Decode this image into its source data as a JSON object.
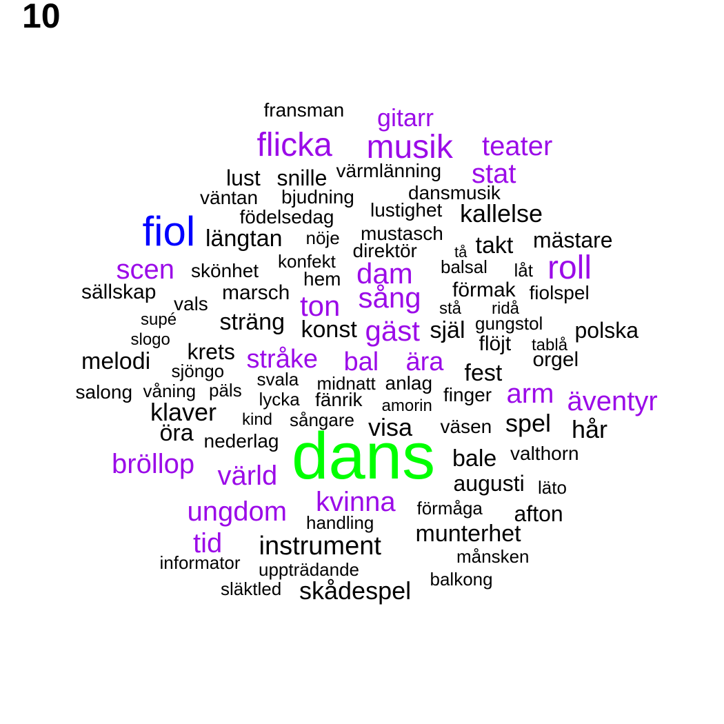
{
  "panel_number": "10",
  "colors": {
    "tier1": "#00ff00",
    "tier2": "#0000ff",
    "tier3": "#9b0be8",
    "tier4": "#000000"
  },
  "words": [
    {
      "text": "dans",
      "tier": "tier1"
    },
    {
      "text": "fiol",
      "tier": "tier2"
    },
    {
      "text": "musik",
      "tier": "tier3"
    },
    {
      "text": "flicka",
      "tier": "tier3"
    },
    {
      "text": "gitarr",
      "tier": "tier3"
    },
    {
      "text": "teater",
      "tier": "tier3"
    },
    {
      "text": "stat",
      "tier": "tier3"
    },
    {
      "text": "roll",
      "tier": "tier3"
    },
    {
      "text": "scen",
      "tier": "tier3"
    },
    {
      "text": "dam",
      "tier": "tier3"
    },
    {
      "text": "sång",
      "tier": "tier3"
    },
    {
      "text": "ton",
      "tier": "tier3"
    },
    {
      "text": "gäst",
      "tier": "tier3"
    },
    {
      "text": "stråke",
      "tier": "tier3"
    },
    {
      "text": "bal",
      "tier": "tier3"
    },
    {
      "text": "ära",
      "tier": "tier3"
    },
    {
      "text": "arm",
      "tier": "tier3"
    },
    {
      "text": "äventyr",
      "tier": "tier3"
    },
    {
      "text": "bröllop",
      "tier": "tier3"
    },
    {
      "text": "värld",
      "tier": "tier3"
    },
    {
      "text": "kvinna",
      "tier": "tier3"
    },
    {
      "text": "ungdom",
      "tier": "tier3"
    },
    {
      "text": "tid",
      "tier": "tier3"
    },
    {
      "text": "fransman",
      "tier": "tier4"
    },
    {
      "text": "lust",
      "tier": "tier4"
    },
    {
      "text": "snille",
      "tier": "tier4"
    },
    {
      "text": "värmlänning",
      "tier": "tier4"
    },
    {
      "text": "väntan",
      "tier": "tier4"
    },
    {
      "text": "bjudning",
      "tier": "tier4"
    },
    {
      "text": "dansmusik",
      "tier": "tier4"
    },
    {
      "text": "lustighet",
      "tier": "tier4"
    },
    {
      "text": "födelsedag",
      "tier": "tier4"
    },
    {
      "text": "kallelse",
      "tier": "tier4"
    },
    {
      "text": "längtan",
      "tier": "tier4"
    },
    {
      "text": "mustasch",
      "tier": "tier4"
    },
    {
      "text": "nöje",
      "tier": "tier4"
    },
    {
      "text": "direktör",
      "tier": "tier4"
    },
    {
      "text": "tå",
      "tier": "tier4"
    },
    {
      "text": "takt",
      "tier": "tier4"
    },
    {
      "text": "mästare",
      "tier": "tier4"
    },
    {
      "text": "konfekt",
      "tier": "tier4"
    },
    {
      "text": "skönhet",
      "tier": "tier4"
    },
    {
      "text": "hem",
      "tier": "tier4"
    },
    {
      "text": "balsal",
      "tier": "tier4"
    },
    {
      "text": "låt",
      "tier": "tier4"
    },
    {
      "text": "sällskap",
      "tier": "tier4"
    },
    {
      "text": "marsch",
      "tier": "tier4"
    },
    {
      "text": "förmak",
      "tier": "tier4"
    },
    {
      "text": "fiolspel",
      "tier": "tier4"
    },
    {
      "text": "vals",
      "tier": "tier4"
    },
    {
      "text": "stå",
      "tier": "tier4"
    },
    {
      "text": "ridå",
      "tier": "tier4"
    },
    {
      "text": "supé",
      "tier": "tier4"
    },
    {
      "text": "sträng",
      "tier": "tier4"
    },
    {
      "text": "gungstol",
      "tier": "tier4"
    },
    {
      "text": "slogo",
      "tier": "tier4"
    },
    {
      "text": "konst",
      "tier": "tier4"
    },
    {
      "text": "själ",
      "tier": "tier4"
    },
    {
      "text": "polska",
      "tier": "tier4"
    },
    {
      "text": "flöjt",
      "tier": "tier4"
    },
    {
      "text": "tablå",
      "tier": "tier4"
    },
    {
      "text": "krets",
      "tier": "tier4"
    },
    {
      "text": "melodi",
      "tier": "tier4"
    },
    {
      "text": "orgel",
      "tier": "tier4"
    },
    {
      "text": "sjöngo",
      "tier": "tier4"
    },
    {
      "text": "fest",
      "tier": "tier4"
    },
    {
      "text": "svala",
      "tier": "tier4"
    },
    {
      "text": "midnatt",
      "tier": "tier4"
    },
    {
      "text": "anlag",
      "tier": "tier4"
    },
    {
      "text": "salong",
      "tier": "tier4"
    },
    {
      "text": "våning",
      "tier": "tier4"
    },
    {
      "text": "päls",
      "tier": "tier4"
    },
    {
      "text": "lycka",
      "tier": "tier4"
    },
    {
      "text": "fänrik",
      "tier": "tier4"
    },
    {
      "text": "finger",
      "tier": "tier4"
    },
    {
      "text": "amorin",
      "tier": "tier4"
    },
    {
      "text": "klaver",
      "tier": "tier4"
    },
    {
      "text": "kind",
      "tier": "tier4"
    },
    {
      "text": "sångare",
      "tier": "tier4"
    },
    {
      "text": "spel",
      "tier": "tier4"
    },
    {
      "text": "visa",
      "tier": "tier4"
    },
    {
      "text": "väsen",
      "tier": "tier4"
    },
    {
      "text": "hår",
      "tier": "tier4"
    },
    {
      "text": "öra",
      "tier": "tier4"
    },
    {
      "text": "nederlag",
      "tier": "tier4"
    },
    {
      "text": "bale",
      "tier": "tier4"
    },
    {
      "text": "valthorn",
      "tier": "tier4"
    },
    {
      "text": "augusti",
      "tier": "tier4"
    },
    {
      "text": "läto",
      "tier": "tier4"
    },
    {
      "text": "förmåga",
      "tier": "tier4"
    },
    {
      "text": "afton",
      "tier": "tier4"
    },
    {
      "text": "handling",
      "tier": "tier4"
    },
    {
      "text": "munterhet",
      "tier": "tier4"
    },
    {
      "text": "instrument",
      "tier": "tier4"
    },
    {
      "text": "månsken",
      "tier": "tier4"
    },
    {
      "text": "informator",
      "tier": "tier4"
    },
    {
      "text": "uppträdande",
      "tier": "tier4"
    },
    {
      "text": "balkong",
      "tier": "tier4"
    },
    {
      "text": "släktled",
      "tier": "tier4"
    },
    {
      "text": "skådespel",
      "tier": "tier4"
    }
  ]
}
